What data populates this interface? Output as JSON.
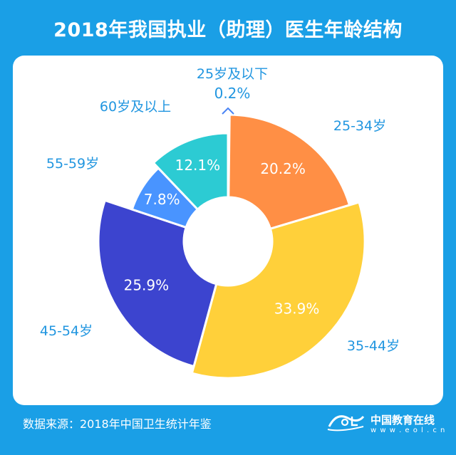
{
  "title": "2018年我国执业（助理）医生年龄结构",
  "source": "数据来源：2018年中国卫生统计年鉴",
  "brand": {
    "name": "中国教育在线",
    "url": "w w w . e o l . c n",
    "logo_text": "eoL"
  },
  "colors": {
    "background": "#1a9fe6",
    "label_text": "#2196e0",
    "value_text": "#ffffff"
  },
  "chart_data": {
    "type": "pie",
    "donut": true,
    "unit": "%",
    "slices": [
      {
        "name": "25岁及以下",
        "value": 0.2,
        "label": "0.2%",
        "color": "#4a84f5"
      },
      {
        "name": "25-34岁",
        "value": 20.2,
        "label": "20.2%",
        "color": "#ff8f45"
      },
      {
        "name": "35-44岁",
        "value": 33.9,
        "label": "33.9%",
        "color": "#ffd03a"
      },
      {
        "name": "45-54岁",
        "value": 25.9,
        "label": "25.9%",
        "color": "#3c44cf"
      },
      {
        "name": "55-59岁",
        "value": 7.8,
        "label": "7.8%",
        "color": "#4994ff"
      },
      {
        "name": "60岁及以上",
        "value": 12.1,
        "label": "12.1%",
        "color": "#2ccbd3"
      }
    ]
  }
}
